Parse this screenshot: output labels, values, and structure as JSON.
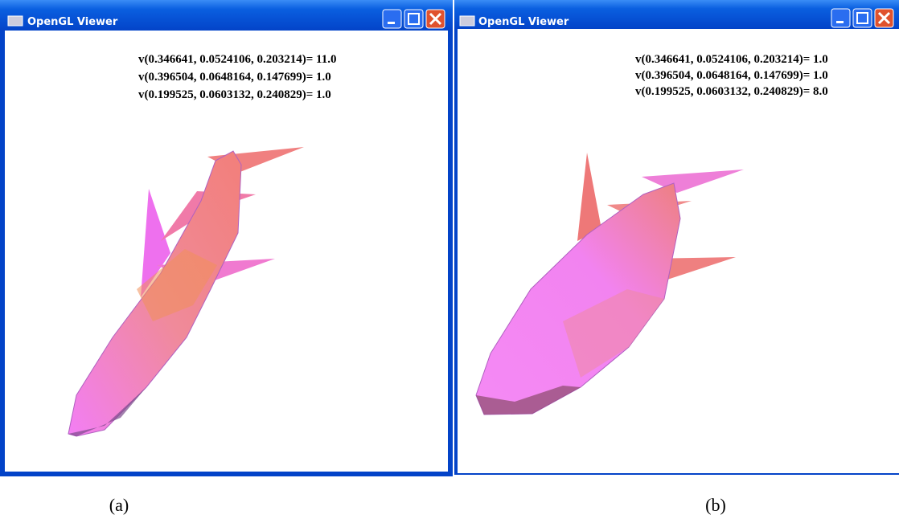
{
  "windows": [
    {
      "title": "OpenGL Viewer",
      "lines": [
        "v(0.346641, 0.0524106, 0.203214)= 11.0",
        "v(0.396504, 0.0648164, 0.147699)= 1.0",
        "v(0.199525, 0.0603132, 0.240829)= 1.0"
      ],
      "caption": "(a)"
    },
    {
      "title": "OpenGL Viewer",
      "lines": [
        "v(0.346641, 0.0524106, 0.203214)= 1.0",
        "v(0.396504, 0.0648164, 0.147699)= 1.0",
        "v(0.199525, 0.0603132, 0.240829)= 8.0"
      ],
      "caption": "(b)"
    }
  ]
}
